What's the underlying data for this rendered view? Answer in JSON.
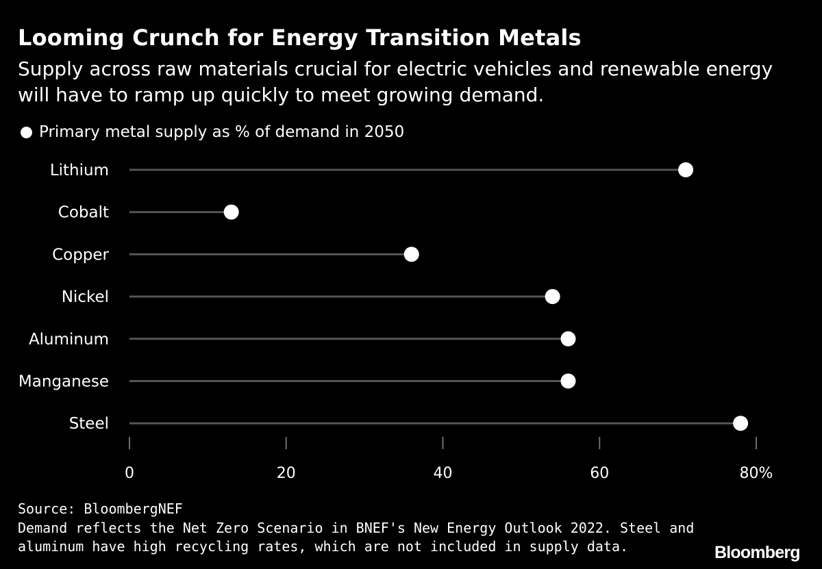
{
  "header": {
    "title": "Looming Crunch for Energy Transition Metals",
    "subtitle": "Supply across raw materials crucial for electric vehicles and renewable energy will have to ramp up quickly to meet growing demand."
  },
  "chart_data": {
    "type": "lollipop",
    "title": "Looming Crunch for Energy Transition Metals",
    "subtitle": "Supply across raw materials crucial for electric vehicles and renewable energy will have to ramp up quickly to meet growing demand.",
    "categories": [
      "Lithium",
      "Cobalt",
      "Copper",
      "Nickel",
      "Aluminum",
      "Manganese",
      "Steel"
    ],
    "series": [
      {
        "name": "Primary metal supply as % of demand in 2050",
        "values": [
          71,
          13,
          36,
          54,
          56,
          56,
          78
        ]
      }
    ],
    "xlim": [
      0,
      80
    ],
    "xticks": [
      "0",
      "20",
      "40",
      "60",
      "80%"
    ],
    "xtick_values": [
      0,
      20,
      40,
      60,
      80
    ],
    "legend_position": "top-left",
    "grid": false
  },
  "legend": {
    "label": "Primary metal supply as % of demand in 2050"
  },
  "footer": {
    "source": "Source: BloombergNEF",
    "note": "Demand reflects the Net Zero Scenario in BNEF's New Energy Outlook 2022. Steel and aluminum have high recycling rates, which are not included in supply data.",
    "logo": "Bloomberg"
  },
  "colors": {
    "background": "#000000",
    "stem": "#555555",
    "dot": "#ffffff",
    "text": "#ffffff",
    "axis": "#6e6e6e"
  }
}
